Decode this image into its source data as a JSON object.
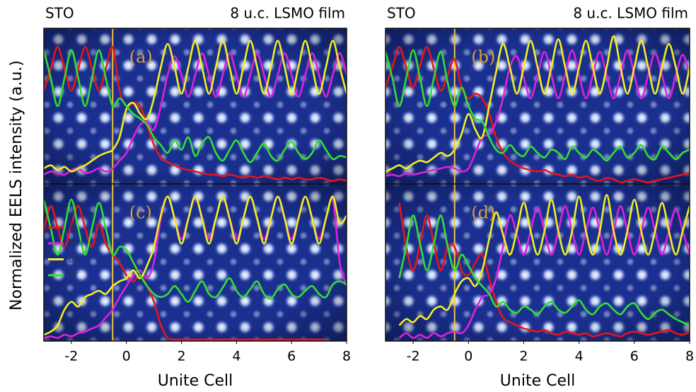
{
  "ylabel": "Normalized EELS intensity (a.u.)",
  "chart_data": [
    {
      "type": "line",
      "label": "(a)",
      "annotations": [
        "STO",
        "8 u.c. LSMO film"
      ],
      "xlim": [
        -3,
        8
      ],
      "ylim": [
        0,
        1
      ],
      "vline": -0.5,
      "vline_color": "#f2c23a",
      "x": [
        -3,
        -2.75,
        -2.5,
        -2.25,
        -2,
        -1.75,
        -1.5,
        -1.25,
        -1,
        -0.75,
        -0.5,
        -0.25,
        0,
        0.25,
        0.5,
        0.75,
        1,
        1.25,
        1.5,
        1.75,
        2,
        2.25,
        2.5,
        2.75,
        3,
        3.25,
        3.5,
        3.75,
        4,
        4.25,
        4.5,
        4.75,
        5,
        5.25,
        5.5,
        5.75,
        6,
        6.25,
        6.5,
        6.75,
        7,
        7.25,
        7.5,
        7.75,
        8
      ],
      "series": [
        {
          "name": "Ti",
          "color": "#e8141a",
          "values": [
            0.6,
            0.74,
            0.88,
            0.74,
            0.6,
            0.74,
            0.88,
            0.74,
            0.6,
            0.74,
            0.88,
            0.6,
            0.5,
            0.52,
            0.5,
            0.38,
            0.25,
            0.17,
            0.14,
            0.12,
            0.1,
            0.09,
            0.08,
            0.07,
            0.06,
            0.06,
            0.05,
            0.06,
            0.05,
            0.04,
            0.05,
            0.04,
            0.05,
            0.04,
            0.03,
            0.04,
            0.03,
            0.04,
            0.03,
            0.03,
            0.04,
            0.03,
            0.02,
            0.03,
            0.02
          ]
        },
        {
          "name": "Mn",
          "color": "#e020e0",
          "values": [
            0.06,
            0.08,
            0.07,
            0.06,
            0.09,
            0.1,
            0.07,
            0.08,
            0.1,
            0.08,
            0.1,
            0.15,
            0.2,
            0.3,
            0.38,
            0.4,
            0.35,
            0.5,
            0.7,
            0.82,
            0.7,
            0.56,
            0.7,
            0.84,
            0.7,
            0.56,
            0.7,
            0.84,
            0.7,
            0.56,
            0.7,
            0.84,
            0.7,
            0.56,
            0.7,
            0.84,
            0.7,
            0.56,
            0.7,
            0.84,
            0.7,
            0.56,
            0.7,
            0.84,
            0.7
          ]
        },
        {
          "name": "La",
          "color": "#f2f020",
          "values": [
            0.1,
            0.12,
            0.09,
            0.11,
            0.08,
            0.1,
            0.12,
            0.15,
            0.18,
            0.2,
            0.22,
            0.3,
            0.48,
            0.52,
            0.45,
            0.42,
            0.55,
            0.75,
            0.9,
            0.75,
            0.58,
            0.75,
            0.92,
            0.75,
            0.58,
            0.75,
            0.92,
            0.75,
            0.58,
            0.75,
            0.92,
            0.75,
            0.58,
            0.75,
            0.92,
            0.75,
            0.58,
            0.75,
            0.92,
            0.75,
            0.58,
            0.75,
            0.92,
            0.75,
            0.58
          ]
        },
        {
          "name": "Sr",
          "color": "#30e030",
          "values": [
            0.86,
            0.68,
            0.5,
            0.68,
            0.86,
            0.68,
            0.5,
            0.68,
            0.86,
            0.68,
            0.5,
            0.55,
            0.5,
            0.45,
            0.42,
            0.38,
            0.3,
            0.25,
            0.2,
            0.28,
            0.22,
            0.3,
            0.18,
            0.26,
            0.3,
            0.2,
            0.15,
            0.22,
            0.28,
            0.2,
            0.14,
            0.2,
            0.26,
            0.18,
            0.15,
            0.22,
            0.27,
            0.2,
            0.16,
            0.2,
            0.28,
            0.22,
            0.16,
            0.18,
            0.17
          ]
        }
      ]
    },
    {
      "type": "line",
      "label": "(b)",
      "annotations": [
        "STO",
        "8 u.c. LSMO film"
      ],
      "xlim": [
        -3,
        8
      ],
      "ylim": [
        0,
        1
      ],
      "vline": -0.5,
      "vline_color": "#f2c23a",
      "x": [
        -3,
        -2.75,
        -2.5,
        -2.25,
        -2,
        -1.75,
        -1.5,
        -1.25,
        -1,
        -0.75,
        -0.5,
        -0.25,
        0,
        0.25,
        0.5,
        0.75,
        1,
        1.25,
        1.5,
        1.75,
        2,
        2.25,
        2.5,
        2.75,
        3,
        3.25,
        3.5,
        3.75,
        4,
        4.25,
        4.5,
        4.75,
        5,
        5.25,
        5.5,
        5.75,
        6,
        6.25,
        6.5,
        6.75,
        7,
        7.25,
        7.5,
        7.75,
        8
      ],
      "series": [
        {
          "name": "Ti",
          "color": "#e8141a",
          "values": [
            0.62,
            0.75,
            0.88,
            0.75,
            0.62,
            0.76,
            0.88,
            0.74,
            0.6,
            0.7,
            0.8,
            0.62,
            0.55,
            0.58,
            0.55,
            0.45,
            0.3,
            0.2,
            0.15,
            0.12,
            0.1,
            0.09,
            0.08,
            0.09,
            0.07,
            0.06,
            0.05,
            0.06,
            0.04,
            0.05,
            0.03,
            0.02,
            0.04,
            0.03,
            0.01,
            0.02,
            0.03,
            0.02,
            0.01,
            0.02,
            0.03,
            0.04,
            0.05,
            0.06,
            0.07
          ]
        },
        {
          "name": "Mn",
          "color": "#e020e0",
          "values": [
            0.05,
            0.06,
            0.05,
            0.07,
            0.06,
            0.07,
            0.08,
            0.09,
            0.1,
            0.11,
            0.1,
            0.08,
            0.1,
            0.2,
            0.3,
            0.32,
            0.4,
            0.55,
            0.75,
            0.82,
            0.68,
            0.55,
            0.7,
            0.85,
            0.7,
            0.55,
            0.7,
            0.86,
            0.7,
            0.55,
            0.7,
            0.85,
            0.7,
            0.55,
            0.7,
            0.86,
            0.7,
            0.55,
            0.7,
            0.84,
            0.7,
            0.55,
            0.7,
            0.83,
            0.7
          ]
        },
        {
          "name": "La",
          "color": "#f2f020",
          "values": [
            0.08,
            0.1,
            0.12,
            0.1,
            0.13,
            0.15,
            0.14,
            0.17,
            0.2,
            0.18,
            0.22,
            0.32,
            0.45,
            0.35,
            0.3,
            0.5,
            0.72,
            0.9,
            0.75,
            0.58,
            0.75,
            0.92,
            0.75,
            0.58,
            0.75,
            0.93,
            0.75,
            0.58,
            0.75,
            0.92,
            0.75,
            0.58,
            0.75,
            0.95,
            0.75,
            0.58,
            0.75,
            0.92,
            0.75,
            0.58,
            0.75,
            0.9,
            0.75,
            0.58,
            0.75
          ]
        },
        {
          "name": "Sr",
          "color": "#30e030",
          "values": [
            0.85,
            0.68,
            0.5,
            0.68,
            0.86,
            0.68,
            0.5,
            0.68,
            0.85,
            0.65,
            0.5,
            0.62,
            0.5,
            0.42,
            0.4,
            0.3,
            0.22,
            0.2,
            0.25,
            0.2,
            0.18,
            0.24,
            0.2,
            0.17,
            0.22,
            0.2,
            0.16,
            0.24,
            0.2,
            0.17,
            0.22,
            0.19,
            0.15,
            0.2,
            0.24,
            0.17,
            0.2,
            0.25,
            0.18,
            0.16,
            0.24,
            0.2,
            0.16,
            0.2,
            0.22
          ]
        }
      ]
    },
    {
      "type": "line",
      "label": "(c)",
      "xlabel": "Unite Cell",
      "xlim": [
        -3,
        8
      ],
      "ylim": [
        0,
        1
      ],
      "xticks": [
        -2,
        0,
        2,
        4,
        6,
        8
      ],
      "vline": -0.5,
      "vline_color": "#f2c23a",
      "legend": "lower left",
      "x": [
        -3,
        -2.75,
        -2.5,
        -2.25,
        -2,
        -1.75,
        -1.5,
        -1.25,
        -1,
        -0.75,
        -0.5,
        -0.25,
        0,
        0.25,
        0.5,
        0.75,
        1,
        1.25,
        1.5,
        1.75,
        2,
        2.25,
        2.5,
        2.75,
        3,
        3.25,
        3.5,
        3.75,
        4,
        4.25,
        4.5,
        4.75,
        5,
        5.25,
        5.5,
        5.75,
        6,
        6.25,
        6.5,
        6.75,
        7,
        7.25,
        7.5,
        7.75,
        8
      ],
      "series": [
        {
          "name": "Ti",
          "color": "#e8141a",
          "values": [
            0.7,
            0.86,
            0.72,
            0.6,
            0.74,
            0.86,
            0.72,
            0.6,
            0.75,
            0.62,
            0.55,
            0.5,
            0.42,
            0.38,
            0.42,
            0.35,
            0.25,
            0.1,
            0.02,
            0.01,
            0.01,
            0.01,
            0.01,
            0.01,
            0.01,
            0.01,
            0.01,
            0.01,
            0.01,
            0.01,
            0.01,
            0.01,
            0.01,
            0.01,
            0.01,
            0.01,
            0.01,
            0.01,
            0.01,
            0.01,
            0.01,
            0.01,
            null,
            null,
            null
          ]
        },
        {
          "name": "Mn",
          "color": "#e020e0",
          "values": [
            0.02,
            0.03,
            0.02,
            0.04,
            0.03,
            0.05,
            0.06,
            0.08,
            0.1,
            0.15,
            0.2,
            0.28,
            0.35,
            0.42,
            0.45,
            0.4,
            0.5,
            0.78,
            0.92,
            0.78,
            0.65,
            0.78,
            0.92,
            0.78,
            0.65,
            0.78,
            0.92,
            0.78,
            0.65,
            0.78,
            0.92,
            0.78,
            0.65,
            0.78,
            0.92,
            0.78,
            0.65,
            0.78,
            0.92,
            0.78,
            0.65,
            0.78,
            0.9,
            0.5,
            0.35
          ]
        },
        {
          "name": "La",
          "color": "#f2f020",
          "values": [
            0.04,
            0.06,
            0.1,
            0.2,
            0.25,
            0.22,
            0.28,
            0.3,
            0.32,
            0.3,
            0.35,
            0.38,
            0.4,
            0.45,
            0.4,
            0.48,
            0.6,
            0.8,
            0.92,
            0.78,
            0.62,
            0.78,
            0.92,
            0.78,
            0.62,
            0.78,
            0.92,
            0.78,
            0.62,
            0.78,
            0.92,
            0.78,
            0.62,
            0.78,
            0.92,
            0.78,
            0.62,
            0.78,
            0.92,
            0.78,
            0.62,
            0.78,
            0.92,
            0.75,
            0.8
          ]
        },
        {
          "name": "Sr",
          "color": "#30e030",
          "values": [
            0.9,
            0.72,
            0.55,
            0.72,
            0.9,
            0.72,
            0.55,
            0.72,
            0.88,
            0.72,
            0.55,
            0.6,
            0.58,
            0.5,
            0.42,
            0.35,
            0.3,
            0.28,
            0.3,
            0.35,
            0.3,
            0.25,
            0.32,
            0.38,
            0.3,
            0.28,
            0.34,
            0.4,
            0.32,
            0.28,
            0.33,
            0.38,
            0.3,
            0.27,
            0.33,
            0.36,
            0.3,
            0.28,
            0.32,
            0.35,
            0.3,
            0.28,
            0.36,
            0.38,
            0.36
          ]
        }
      ]
    },
    {
      "type": "line",
      "label": "(d)",
      "xlabel": "Unite Cell",
      "xlim": [
        -3,
        8
      ],
      "ylim": [
        0,
        1
      ],
      "xticks": [
        -2,
        0,
        2,
        4,
        6,
        8
      ],
      "vline": -0.5,
      "vline_color": "#f2c23a",
      "x": [
        -3,
        -2.75,
        -2.5,
        -2.25,
        -2,
        -1.75,
        -1.5,
        -1.25,
        -1,
        -0.75,
        -0.5,
        -0.25,
        0,
        0.25,
        0.5,
        0.75,
        1,
        1.25,
        1.5,
        1.75,
        2,
        2.25,
        2.5,
        2.75,
        3,
        3.25,
        3.5,
        3.75,
        4,
        4.25,
        4.5,
        4.75,
        5,
        5.25,
        5.5,
        5.75,
        6,
        6.25,
        6.5,
        6.75,
        7,
        7.25,
        7.5,
        7.75,
        8
      ],
      "series": [
        {
          "name": "Ti",
          "color": "#e8141a",
          "values": [
            null,
            null,
            0.88,
            0.6,
            0.45,
            0.62,
            0.8,
            0.62,
            0.45,
            0.6,
            0.6,
            0.45,
            0.42,
            0.5,
            0.55,
            0.4,
            0.25,
            0.15,
            0.12,
            0.1,
            0.08,
            0.07,
            0.06,
            0.07,
            0.05,
            0.04,
            0.06,
            0.05,
            0.04,
            0.05,
            0.03,
            0.04,
            0.05,
            0.04,
            0.03,
            0.05,
            0.06,
            0.05,
            0.04,
            0.05,
            0.06,
            0.07,
            0.05,
            0.04,
            0.06
          ]
        },
        {
          "name": "Mn",
          "color": "#e020e0",
          "values": [
            null,
            null,
            0.02,
            0.05,
            0.02,
            0.04,
            0.02,
            0.05,
            0.03,
            0.05,
            0.06,
            0.05,
            0.1,
            0.2,
            0.28,
            0.3,
            0.4,
            0.6,
            0.8,
            0.68,
            0.55,
            0.7,
            0.85,
            0.7,
            0.55,
            0.7,
            0.86,
            0.7,
            0.55,
            0.7,
            0.85,
            0.7,
            0.55,
            0.7,
            0.86,
            0.7,
            0.55,
            0.7,
            0.85,
            0.7,
            0.55,
            0.7,
            0.84,
            0.7,
            0.55
          ]
        },
        {
          "name": "La",
          "color": "#f2f020",
          "values": [
            null,
            null,
            0.1,
            0.14,
            0.12,
            0.16,
            0.14,
            0.2,
            0.22,
            0.2,
            0.3,
            0.38,
            0.4,
            0.35,
            0.45,
            0.65,
            0.82,
            0.68,
            0.55,
            0.7,
            0.88,
            0.7,
            0.55,
            0.7,
            0.9,
            0.7,
            0.55,
            0.7,
            0.92,
            0.7,
            0.55,
            0.7,
            0.93,
            0.7,
            0.55,
            0.7,
            0.9,
            0.7,
            0.55,
            0.7,
            0.88,
            0.7,
            0.55,
            0.7,
            0.86
          ]
        },
        {
          "name": "Sr",
          "color": "#30e030",
          "values": [
            null,
            null,
            0.4,
            0.6,
            0.8,
            0.62,
            0.45,
            0.62,
            0.8,
            0.6,
            0.45,
            0.55,
            0.48,
            0.4,
            0.35,
            0.3,
            0.22,
            0.25,
            0.2,
            0.18,
            0.22,
            0.2,
            0.17,
            0.22,
            0.25,
            0.2,
            0.18,
            0.22,
            0.26,
            0.2,
            0.17,
            0.22,
            0.24,
            0.2,
            0.17,
            0.22,
            0.24,
            0.18,
            0.14,
            0.18,
            0.2,
            0.17,
            0.14,
            0.12,
            0.1
          ]
        }
      ]
    }
  ]
}
